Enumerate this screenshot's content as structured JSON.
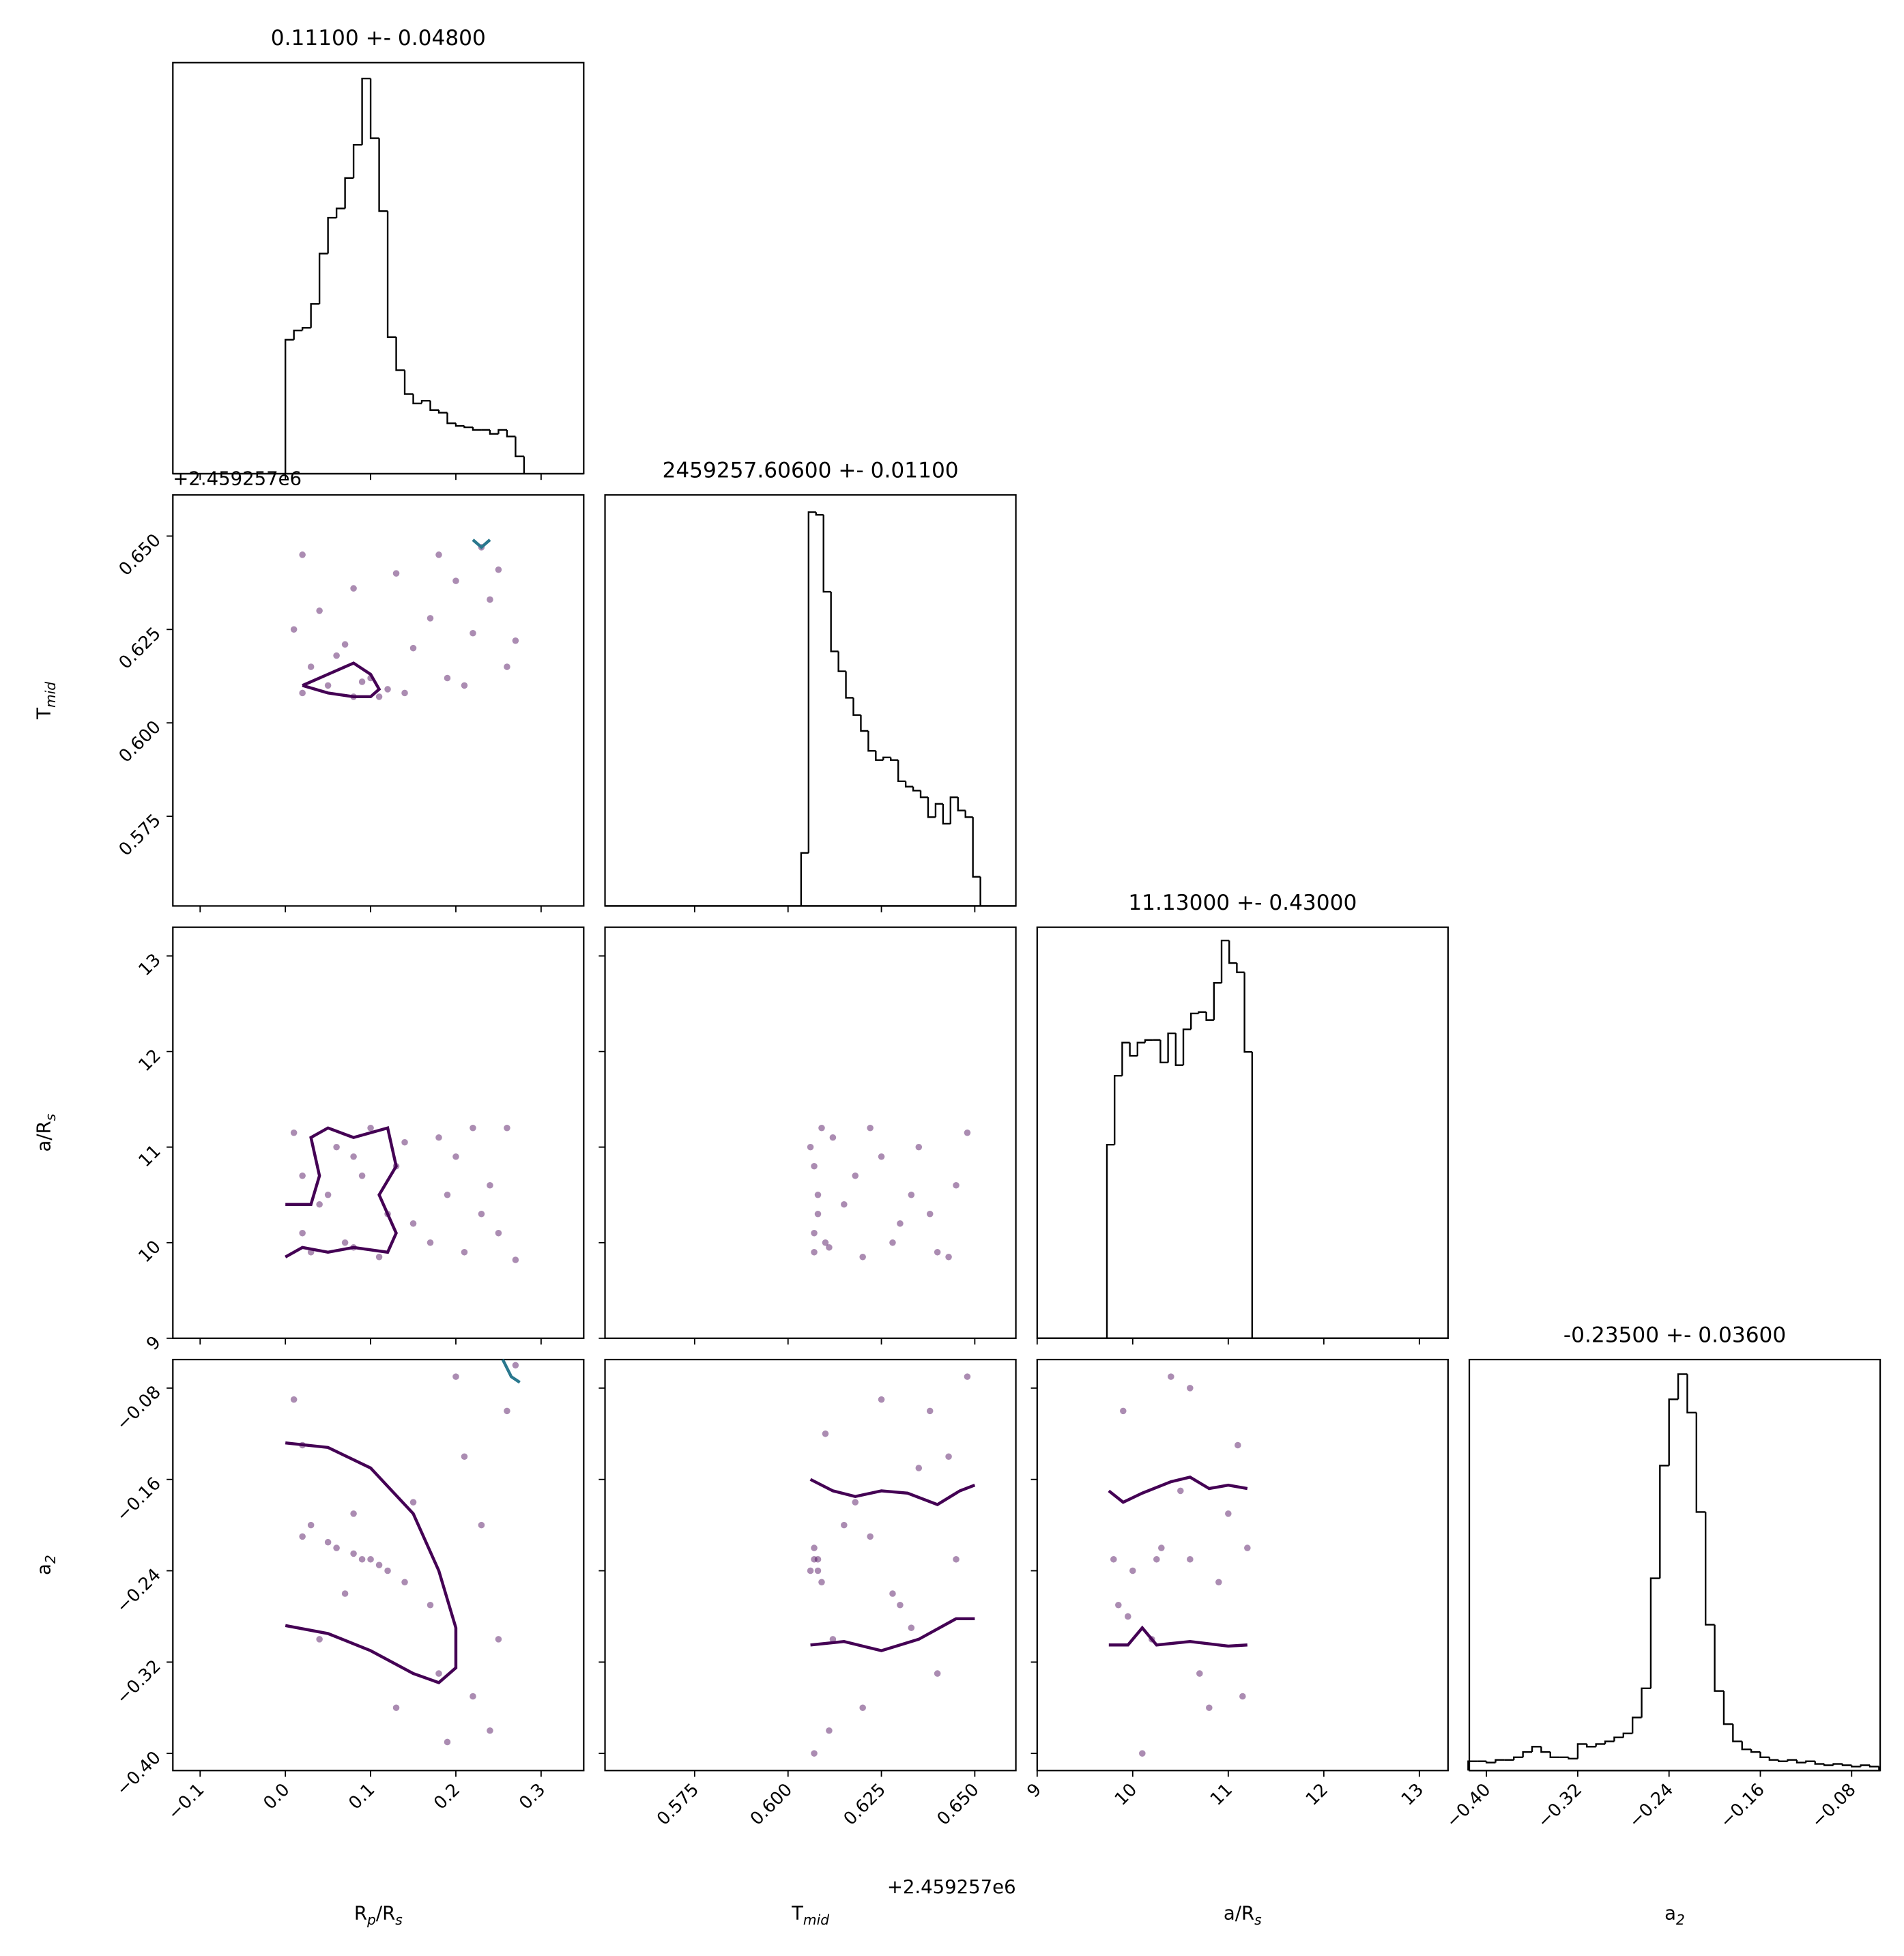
{
  "chart_data": {
    "type": "corner",
    "parameters": [
      {
        "label": [
          "R",
          "p",
          "/R",
          "s"
        ],
        "lim": [
          -0.132,
          0.35
        ],
        "ticks": [
          {
            "value": -0.1,
            "label": "−0.1"
          },
          {
            "value": 0,
            "label": "0.0"
          },
          0.1,
          0.2,
          0.3
        ]
      },
      {
        "label": [
          "T",
          "mid"
        ],
        "lim": [
          0.551,
          0.661
        ],
        "offset": "+2.459257e6",
        "ticks": [
          0.575,
          {
            "value": 0.6,
            "label": "0.600"
          },
          0.625,
          {
            "value": 0.65,
            "label": "0.650"
          }
        ]
      },
      {
        "label": [
          "a/R",
          "s"
        ],
        "lim": [
          9,
          13.3
        ],
        "ticks": [
          9,
          10,
          11,
          12,
          13
        ]
      },
      {
        "label": [
          "a",
          "2"
        ],
        "lim": [
          -0.415,
          -0.055
        ],
        "ticks": [
          {
            "value": -0.4,
            "label": "−0.40"
          },
          {
            "value": -0.32,
            "label": "−0.32"
          },
          {
            "value": -0.24,
            "label": "−0.24"
          },
          {
            "value": -0.16,
            "label": "−0.16"
          },
          {
            "value": -0.08,
            "label": "−0.08"
          }
        ]
      }
    ],
    "rows": [
      [
        {
          "type": "histogram",
          "title": "0.11100 +- 0.04800",
          "ylim": [
            0,
            310
          ],
          "color": "#000000",
          "bins": [
            0,
            0.01,
            0.02,
            0.03,
            0.04,
            0.05,
            0.06,
            0.07,
            0.08,
            0.09,
            0.1,
            0.11,
            0.12,
            0.13,
            0.14,
            0.15,
            0.16,
            0.17,
            0.18,
            0.19,
            0.2,
            0.21,
            0.22,
            0.23,
            0.24,
            0.25,
            0.26,
            0.27,
            0.28
          ],
          "counts": [
            101,
            108,
            110,
            128,
            166,
            193,
            200,
            223,
            248,
            298,
            253,
            198,
            103,
            78,
            60,
            53,
            55,
            48,
            46,
            38,
            36,
            35,
            33,
            33,
            30,
            33,
            28,
            13
          ]
        }
      ],
      [
        {
          "type": "scatter",
          "color": "#440154",
          "x": [
            0.02,
            0.05,
            0.08,
            0.1,
            0.12,
            0.03,
            0.06,
            0.09,
            0.11,
            0.01,
            0.04,
            0.07,
            0.13,
            0.15,
            0.18,
            0.21,
            0.24,
            0.26,
            0.17,
            0.2,
            0.23,
            0.27,
            0.14,
            0.19,
            0.25,
            0.02,
            0.08,
            0.22
          ],
          "y": [
            0.608,
            0.61,
            0.607,
            0.612,
            0.609,
            0.615,
            0.618,
            0.611,
            0.607,
            0.625,
            0.63,
            0.621,
            0.64,
            0.62,
            0.645,
            0.61,
            0.633,
            0.615,
            0.628,
            0.638,
            0.647,
            0.622,
            0.608,
            0.612,
            0.641,
            0.645,
            0.636,
            0.624
          ],
          "contours": [
            {
              "color": "#440154",
              "x": [
                0.02,
                0.05,
                0.08,
                0.1,
                0.11,
                0.1,
                0.08,
                0.05,
                0.02
              ],
              "y": [
                0.61,
                0.613,
                0.616,
                0.613,
                0.609,
                0.607,
                0.607,
                0.608,
                0.61
              ]
            },
            {
              "color": "#2a788e",
              "x": [
                0.22,
                0.23,
                0.24
              ],
              "y": [
                0.649,
                0.647,
                0.649
              ]
            }
          ]
        },
        {
          "type": "histogram",
          "title": "2459257.60600 +- 0.01100",
          "ylim": [
            0,
            310
          ],
          "color": "#000000",
          "bins": [
            0.6035,
            0.6055,
            0.6075,
            0.6095,
            0.6115,
            0.6135,
            0.6155,
            0.6175,
            0.6195,
            0.6215,
            0.6235,
            0.6255,
            0.6275,
            0.6295,
            0.6315,
            0.6335,
            0.6355,
            0.6375,
            0.6395,
            0.6415,
            0.6435,
            0.6455,
            0.6475,
            0.6495,
            0.6515
          ],
          "counts": [
            40,
            297,
            295,
            237,
            192,
            177,
            157,
            144,
            132,
            117,
            110,
            112,
            110,
            94,
            90,
            87,
            82,
            67,
            77,
            62,
            82,
            72,
            67,
            22
          ]
        }
      ],
      [
        {
          "type": "scatter",
          "color": "#440154",
          "x": [
            0.02,
            0.05,
            0.08,
            0.1,
            0.12,
            0.03,
            0.06,
            0.09,
            0.11,
            0.01,
            0.04,
            0.07,
            0.13,
            0.15,
            0.18,
            0.21,
            0.24,
            0.26,
            0.17,
            0.2,
            0.23,
            0.27,
            0.14,
            0.19,
            0.25,
            0.02,
            0.08,
            0.22
          ],
          "y": [
            10.1,
            10.5,
            10.9,
            11.2,
            10.3,
            9.9,
            11.0,
            10.7,
            9.85,
            11.15,
            10.4,
            10.0,
            10.8,
            10.2,
            11.1,
            9.9,
            10.6,
            11.2,
            10.0,
            10.9,
            10.3,
            9.82,
            11.05,
            10.5,
            10.1,
            10.7,
            9.95,
            11.2
          ],
          "contours": [
            {
              "color": "#440154",
              "x": [
                0,
                0.03,
                0.04,
                0.03,
                0.05,
                0.08,
                0.12,
                0.13,
                0.11,
                0.13,
                0.12,
                0.08,
                0.05,
                0.02,
                0
              ],
              "y": [
                10.4,
                10.4,
                10.7,
                11.1,
                11.2,
                11.1,
                11.2,
                10.8,
                10.5,
                10.1,
                9.9,
                9.95,
                9.9,
                9.95,
                9.85
              ]
            }
          ]
        },
        {
          "type": "scatter",
          "color": "#440154",
          "x": [
            0.607,
            0.608,
            0.607,
            0.609,
            0.608,
            0.61,
            0.612,
            0.615,
            0.62,
            0.625,
            0.63,
            0.635,
            0.64,
            0.645,
            0.648,
            0.607,
            0.618,
            0.628,
            0.638,
            0.606,
            0.611,
            0.622,
            0.633,
            0.643
          ],
          "y": [
            9.9,
            10.3,
            10.8,
            11.2,
            10.5,
            10.0,
            11.1,
            10.4,
            9.85,
            10.9,
            10.2,
            11.0,
            9.9,
            10.6,
            11.15,
            10.1,
            10.7,
            10.0,
            10.3,
            11.0,
            9.95,
            11.2,
            10.5,
            9.85
          ],
          "contours": []
        },
        {
          "type": "histogram",
          "title": "11.13000 +- 0.43000",
          "ylim": [
            0,
            310
          ],
          "color": "#000000",
          "bins": [
            9.73,
            9.81,
            9.89,
            9.97,
            10.05,
            10.13,
            10.21,
            10.29,
            10.37,
            10.45,
            10.53,
            10.61,
            10.69,
            10.77,
            10.85,
            10.93,
            11.01,
            11.09,
            11.17,
            11.25
          ],
          "counts": [
            146,
            198,
            223,
            213,
            223,
            225,
            225,
            208,
            230,
            206,
            233,
            245,
            246,
            240,
            268,
            300,
            283,
            276,
            216
          ]
        }
      ],
      [
        {
          "type": "scatter",
          "color": "#440154",
          "x": [
            0.02,
            0.05,
            0.08,
            0.1,
            0.12,
            0.03,
            0.06,
            0.09,
            0.11,
            0.01,
            0.04,
            0.07,
            0.13,
            0.15,
            0.18,
            0.21,
            0.24,
            0.26,
            0.17,
            0.2,
            0.23,
            0.27,
            0.14,
            0.19,
            0.25,
            0.02,
            0.08,
            0.22
          ],
          "y": [
            -0.21,
            -0.215,
            -0.225,
            -0.23,
            -0.24,
            -0.2,
            -0.22,
            -0.23,
            -0.235,
            -0.09,
            -0.3,
            -0.26,
            -0.36,
            -0.18,
            -0.33,
            -0.14,
            -0.38,
            -0.1,
            -0.27,
            -0.07,
            -0.2,
            -0.06,
            -0.25,
            -0.39,
            -0.3,
            -0.13,
            -0.19,
            -0.35
          ],
          "contours": [
            {
              "color": "#440154",
              "x": [
                0,
                0.05,
                0.1,
                0.15,
                0.18,
                0.2,
                0.2,
                0.18,
                0.15,
                0.1,
                0.05,
                0
              ],
              "y": [
                -0.128,
                -0.132,
                -0.15,
                -0.19,
                -0.24,
                -0.29,
                -0.325,
                -0.338,
                -0.33,
                -0.31,
                -0.295,
                -0.288
              ]
            },
            {
              "color": "#2a788e",
              "x": [
                0.255,
                0.265,
                0.275
              ],
              "y": [
                -0.055,
                -0.07,
                -0.075
              ]
            }
          ]
        },
        {
          "type": "scatter",
          "color": "#440154",
          "x": [
            0.607,
            0.608,
            0.607,
            0.609,
            0.608,
            0.61,
            0.612,
            0.615,
            0.62,
            0.625,
            0.63,
            0.635,
            0.64,
            0.645,
            0.648,
            0.607,
            0.618,
            0.628,
            0.638,
            0.606,
            0.611,
            0.622,
            0.633,
            0.643
          ],
          "y": [
            -0.23,
            -0.24,
            -0.22,
            -0.25,
            -0.23,
            -0.12,
            -0.3,
            -0.2,
            -0.36,
            -0.09,
            -0.27,
            -0.15,
            -0.33,
            -0.23,
            -0.07,
            -0.4,
            -0.18,
            -0.26,
            -0.1,
            -0.24,
            -0.38,
            -0.21,
            -0.29,
            -0.14
          ],
          "contours": [
            {
              "color": "#440154",
              "x": [
                0.606,
                0.612,
                0.618,
                0.625,
                0.632,
                0.64,
                0.646,
                0.65
              ],
              "y": [
                -0.16,
                -0.17,
                -0.175,
                -0.17,
                -0.172,
                -0.182,
                -0.17,
                -0.165
              ]
            },
            {
              "color": "#440154",
              "x": [
                0.606,
                0.615,
                0.625,
                0.635,
                0.645,
                0.65
              ],
              "y": [
                -0.305,
                -0.302,
                -0.31,
                -0.3,
                -0.282,
                -0.282
              ]
            }
          ]
        },
        {
          "type": "scatter",
          "color": "#440154",
          "x": [
            9.8,
            10.0,
            10.3,
            10.6,
            10.9,
            11.2,
            9.9,
            10.2,
            10.5,
            10.8,
            11.1,
            9.85,
            10.1,
            10.4,
            10.7,
            11.0,
            9.95,
            10.6,
            11.15,
            10.25
          ],
          "y": [
            -0.23,
            -0.24,
            -0.22,
            -0.23,
            -0.25,
            -0.22,
            -0.1,
            -0.3,
            -0.17,
            -0.36,
            -0.13,
            -0.27,
            -0.4,
            -0.07,
            -0.33,
            -0.19,
            -0.28,
            -0.08,
            -0.35,
            -0.23
          ],
          "contours": [
            {
              "color": "#440154",
              "x": [
                9.75,
                9.9,
                10.1,
                10.4,
                10.6,
                10.8,
                11.0,
                11.2
              ],
              "y": [
                -0.17,
                -0.18,
                -0.172,
                -0.162,
                -0.158,
                -0.168,
                -0.165,
                -0.168
              ]
            },
            {
              "color": "#440154",
              "x": [
                9.75,
                9.95,
                10.1,
                10.25,
                10.6,
                11.0,
                11.2
              ],
              "y": [
                -0.305,
                -0.305,
                -0.29,
                -0.305,
                -0.302,
                -0.306,
                -0.305
              ]
            }
          ]
        },
        {
          "type": "histogram",
          "title": "-0.23500 +- 0.03600",
          "ylim": [
            0,
            310
          ],
          "color": "#000000",
          "bins": [
            -0.416,
            -0.408,
            -0.4,
            -0.392,
            -0.384,
            -0.376,
            -0.368,
            -0.36,
            -0.352,
            -0.344,
            -0.336,
            -0.328,
            -0.32,
            -0.312,
            -0.304,
            -0.296,
            -0.288,
            -0.28,
            -0.272,
            -0.264,
            -0.256,
            -0.248,
            -0.24,
            -0.232,
            -0.224,
            -0.216,
            -0.208,
            -0.2,
            -0.192,
            -0.184,
            -0.176,
            -0.168,
            -0.16,
            -0.152,
            -0.144,
            -0.136,
            -0.128,
            -0.12,
            -0.112,
            -0.104,
            -0.096,
            -0.088,
            -0.08,
            -0.072,
            -0.064,
            -0.056
          ],
          "counts": [
            7,
            7,
            6,
            8,
            8,
            10,
            14,
            18,
            14,
            10,
            10,
            9,
            20,
            18,
            20,
            22,
            25,
            28,
            40,
            62,
            145,
            230,
            280,
            299,
            270,
            195,
            110,
            60,
            35,
            22,
            16,
            14,
            10,
            8,
            7,
            8,
            6,
            7,
            5,
            4,
            5,
            4,
            3,
            4,
            3
          ]
        }
      ]
    ]
  }
}
